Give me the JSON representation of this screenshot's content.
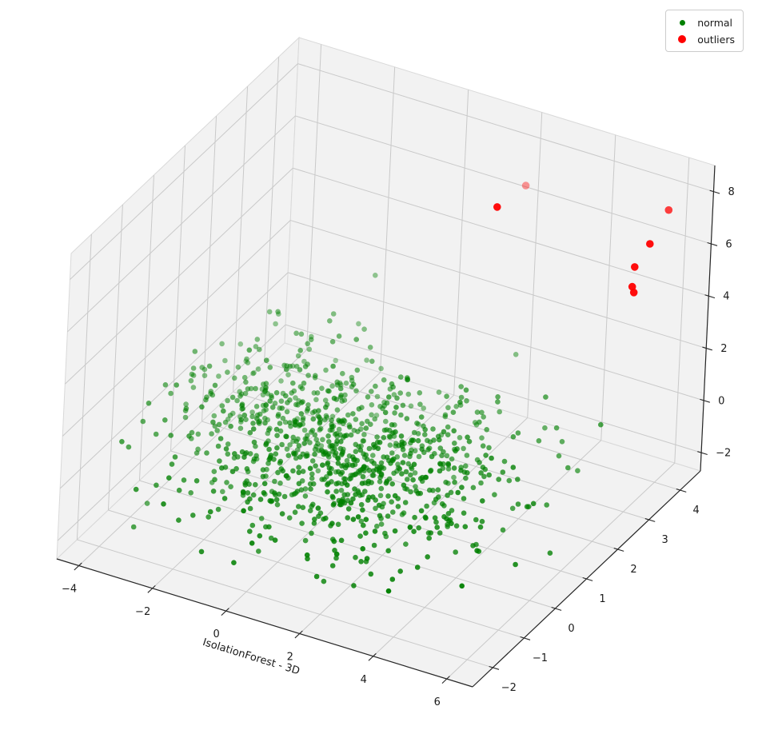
{
  "figure": {
    "background": "#ffffff"
  },
  "legend": {
    "position": "upper right",
    "items": [
      {
        "label": "normal",
        "color": "#008000",
        "marker_diameter": 7
      },
      {
        "label": "outliers",
        "color": "#ff0000",
        "marker_diameter": 10
      }
    ]
  },
  "chart_data": {
    "type": "scatter",
    "projection": "3d",
    "title": "",
    "xlabel": "IsolationForest - 3D",
    "ylabel": "",
    "zlabel": "",
    "xlim": [
      -4.6,
      6.7
    ],
    "ylim": [
      -2.65,
      4.65
    ],
    "zlim": [
      -2.7,
      9.0
    ],
    "x_ticks": [
      -4,
      -2,
      0,
      2,
      4,
      6
    ],
    "y_ticks": [
      -2,
      -1,
      0,
      1,
      2,
      3,
      4
    ],
    "z_ticks": [
      -2,
      0,
      2,
      4,
      6,
      8
    ],
    "grid": true,
    "view": {
      "elev": 30,
      "azim": -60
    },
    "colors": {
      "pane": "#f2f2f2",
      "grid_line": "#c9c9c9",
      "pane_edge": "#d9d9d9",
      "axis_line": "#262626",
      "tick_label": "#1a1a1a"
    },
    "series": [
      {
        "name": "normal",
        "color": "#008000",
        "marker_radius": 3.3,
        "clusters": [
          {
            "n": 720,
            "center": [
              0.9,
              0.7,
              -0.6
            ],
            "std": [
              1.7,
              1.15,
              0.8
            ],
            "seed": 42
          },
          {
            "n": 280,
            "center": [
              -2.2,
              1.4,
              -0.4
            ],
            "std": [
              1.15,
              1.05,
              0.75
            ],
            "seed": 1234
          }
        ]
      },
      {
        "name": "outliers",
        "color": "#ff0000",
        "marker_radius": 4.8,
        "points": [
          {
            "xyz": [
              2.5,
              3.6,
              7.6
            ],
            "alpha": 0.4
          },
          {
            "xyz": [
              2.0,
              3.3,
              6.9
            ],
            "alpha": 0.95
          },
          {
            "xyz": [
              5.8,
              4.3,
              7.3
            ],
            "alpha": 0.75
          },
          {
            "xyz": [
              5.5,
              4.1,
              6.1
            ],
            "alpha": 0.95
          },
          {
            "xyz": [
              5.2,
              4.0,
              5.2
            ],
            "alpha": 0.95
          },
          {
            "xyz": [
              5.2,
              3.95,
              4.5
            ],
            "alpha": 0.95
          },
          {
            "xyz": [
              5.25,
              3.95,
              4.3
            ],
            "alpha": 0.95
          }
        ]
      }
    ]
  }
}
